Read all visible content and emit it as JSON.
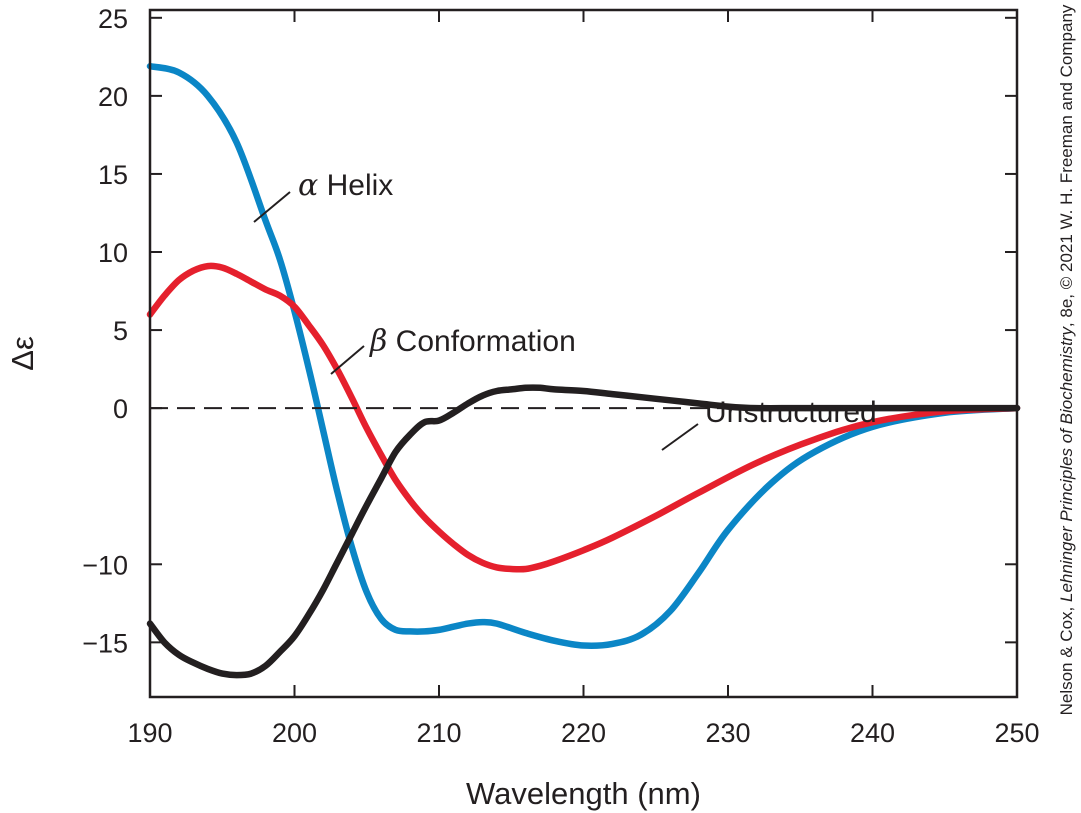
{
  "chart_data": {
    "type": "line",
    "xlabel": "Wavelength (nm)",
    "ylabel": "Δε",
    "xlim": [
      190,
      250
    ],
    "ylim": [
      -18.5,
      25.5
    ],
    "xticks": [
      190,
      200,
      210,
      220,
      230,
      240,
      250
    ],
    "yticks": [
      25,
      20,
      15,
      10,
      5,
      0,
      -10,
      -15
    ],
    "ytick_labels": [
      "25",
      "20",
      "15",
      "10",
      "5",
      "0",
      "−10",
      "−15"
    ],
    "zero_line": "dashed",
    "grid": false,
    "legend": "none (curves labeled directly)",
    "series": [
      {
        "name": "α Helix",
        "label_greek": "α",
        "label_text": " Helix",
        "color": "#0b86c6",
        "x": [
          190,
          192,
          194,
          196,
          198,
          199,
          200,
          201,
          202,
          203,
          204,
          205,
          206,
          207,
          208,
          209,
          210,
          211,
          212,
          213,
          214,
          216,
          218,
          220,
          222,
          224,
          226,
          228,
          230,
          233,
          236,
          240,
          245,
          250
        ],
        "y": [
          21.9,
          21.5,
          20.0,
          17.0,
          12.0,
          9.5,
          6.2,
          2.5,
          -1.5,
          -5.5,
          -9.0,
          -11.8,
          -13.5,
          -14.2,
          -14.3,
          -14.3,
          -14.2,
          -14.0,
          -13.8,
          -13.7,
          -13.8,
          -14.4,
          -14.9,
          -15.2,
          -15.1,
          -14.5,
          -13.0,
          -10.5,
          -7.8,
          -4.8,
          -2.8,
          -1.2,
          -0.3,
          0.0
        ]
      },
      {
        "name": "β Conformation",
        "label_greek": "β",
        "label_text": " Conformation",
        "color": "#e5202d",
        "x": [
          190,
          191,
          192,
          193,
          194,
          195,
          196,
          197,
          198,
          199,
          200,
          201,
          202,
          203,
          204,
          205,
          206,
          207,
          208,
          209,
          210,
          211,
          212,
          213,
          214,
          215,
          216,
          217,
          218,
          220,
          222,
          225,
          228,
          232,
          236,
          240,
          245,
          250
        ],
        "y": [
          6.0,
          7.2,
          8.2,
          8.8,
          9.1,
          9.0,
          8.6,
          8.1,
          7.6,
          7.2,
          6.5,
          5.3,
          4.0,
          2.4,
          0.6,
          -1.3,
          -3.0,
          -4.6,
          -5.9,
          -7.0,
          -7.9,
          -8.7,
          -9.4,
          -9.9,
          -10.2,
          -10.3,
          -10.3,
          -10.1,
          -9.8,
          -9.1,
          -8.3,
          -6.9,
          -5.4,
          -3.5,
          -2.0,
          -0.9,
          -0.2,
          0.0
        ]
      },
      {
        "name": "Unstructured",
        "label_text": "Unstructured",
        "color": "#231f20",
        "x": [
          190,
          191,
          192,
          193,
          194,
          195,
          196,
          197,
          198,
          199,
          200,
          201,
          202,
          203,
          204,
          205,
          206,
          207,
          208,
          209,
          210,
          211,
          212,
          213,
          214,
          215,
          216,
          217,
          218,
          220,
          222,
          224,
          226,
          228,
          230,
          232,
          235,
          240,
          245,
          250
        ],
        "y": [
          -13.8,
          -15.0,
          -15.8,
          -16.3,
          -16.7,
          -17.0,
          -17.1,
          -17.0,
          -16.5,
          -15.6,
          -14.6,
          -13.2,
          -11.6,
          -9.8,
          -8.0,
          -6.2,
          -4.5,
          -2.8,
          -1.7,
          -0.9,
          -0.8,
          -0.3,
          0.3,
          0.8,
          1.1,
          1.2,
          1.3,
          1.3,
          1.2,
          1.1,
          0.9,
          0.7,
          0.5,
          0.3,
          0.1,
          0.0,
          0.0,
          0.0,
          0.0,
          0.0
        ]
      }
    ]
  },
  "credit": {
    "prefix": "Nelson & Cox, ",
    "book": "Lehninger Principles of Biochemistry",
    "suffix": ", 8e, © 2021 W. H. Freeman and Company"
  }
}
